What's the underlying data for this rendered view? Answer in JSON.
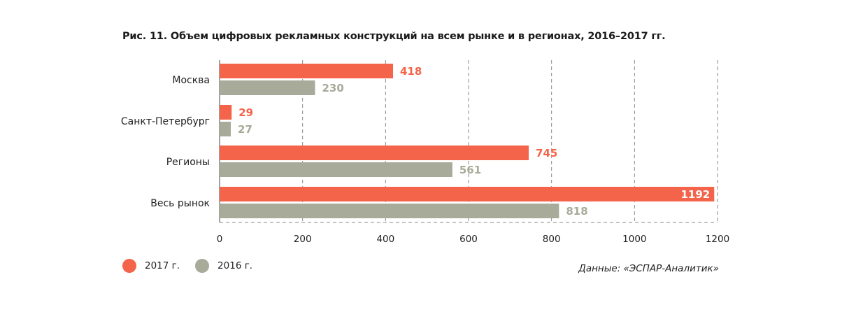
{
  "colors": {
    "s2017": "#f4644a",
    "s2016": "#a8aa9a",
    "grid": "#888888",
    "axis": "#444444"
  },
  "chart_data": {
    "type": "bar",
    "orientation": "horizontal",
    "title": "Рис. 11. Объем цифровых рекламных конструкций на всем рынке и в регионах, 2016–2017 гг.",
    "categories": [
      "Москва",
      "Санкт-Петербург",
      "Регионы",
      "Весь рынок"
    ],
    "series": [
      {
        "name": "2017 г.",
        "values": [
          418,
          29,
          745,
          1192
        ]
      },
      {
        "name": "2016 г.",
        "values": [
          230,
          27,
          561,
          818
        ]
      }
    ],
    "xlim": [
      0,
      1200
    ],
    "xticks": [
      "0",
      "200",
      "400",
      "600",
      "800",
      "1000",
      "1200"
    ],
    "xlabel": "",
    "ylabel": "",
    "grid": true,
    "legend": "bottom-left"
  },
  "legend": {
    "label_2017": "2017 г.",
    "label_2016": "2016 г."
  },
  "source": "Данные: «ЭСПАР-Аналитик»"
}
